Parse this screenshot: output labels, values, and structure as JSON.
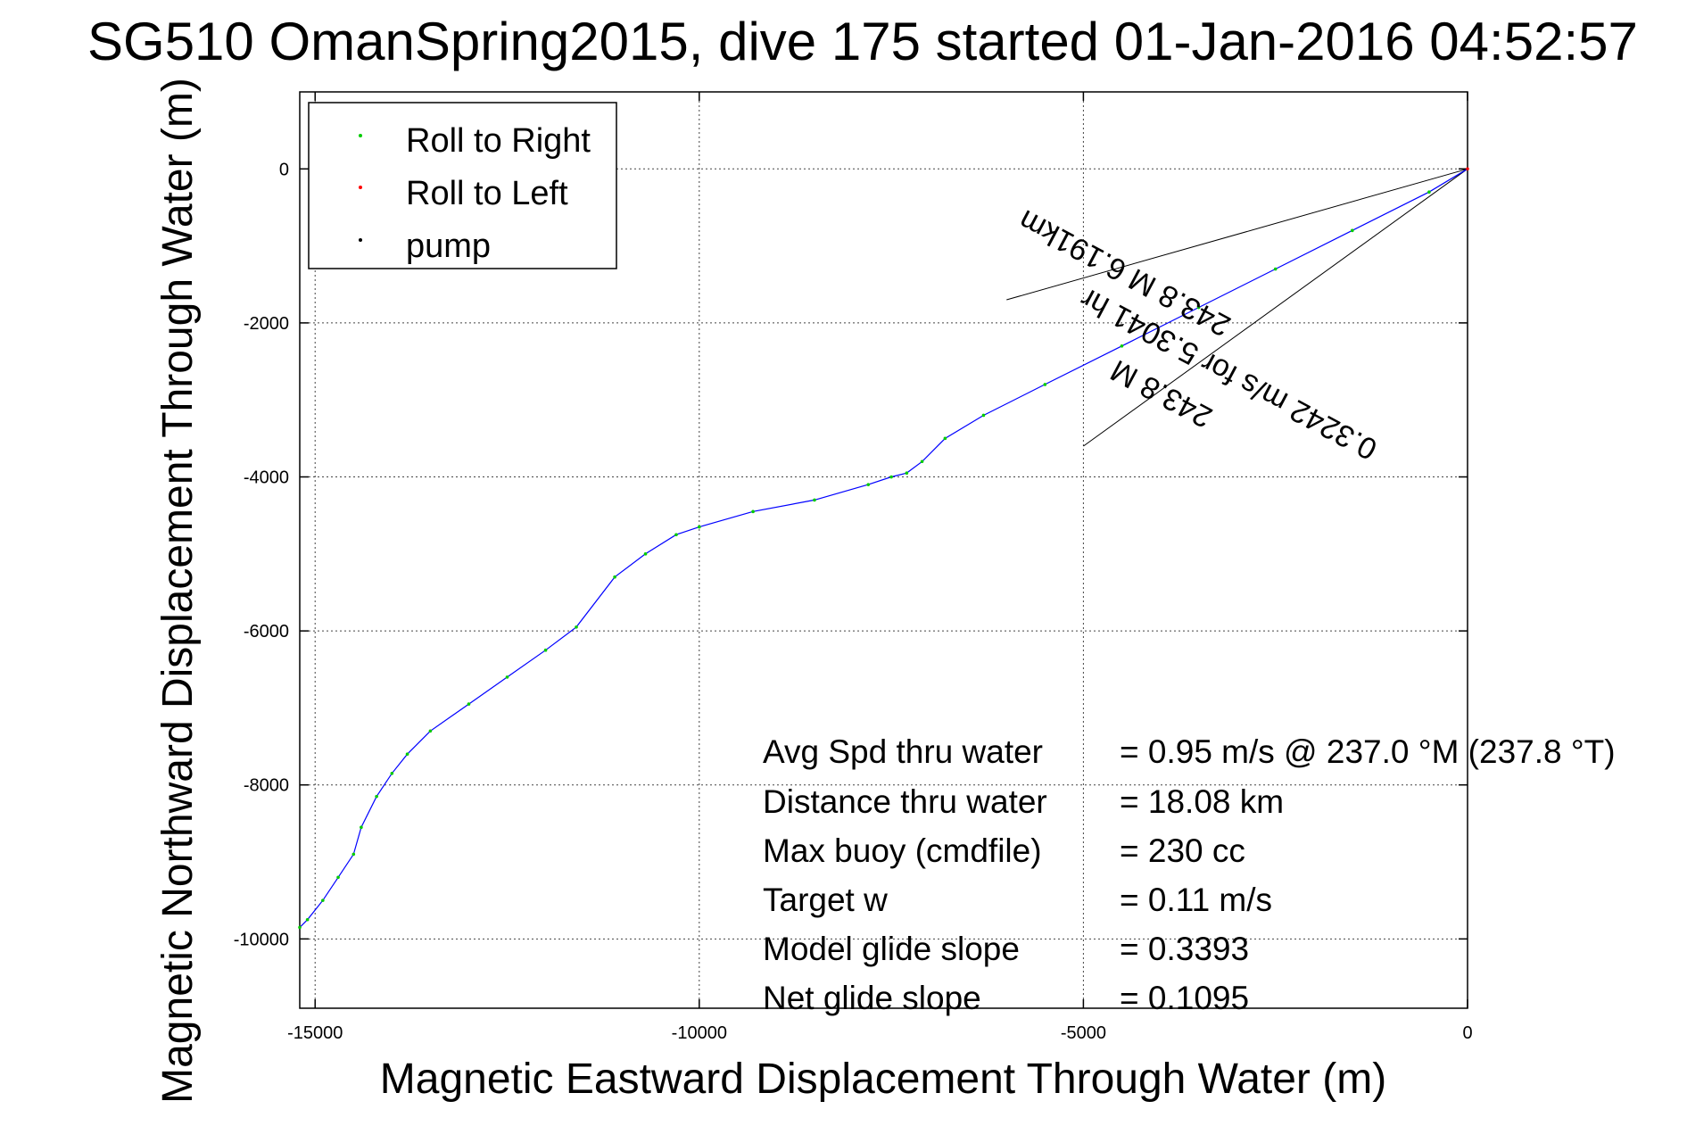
{
  "chart_data": {
    "type": "line",
    "title": "SG510 OmanSpring2015, dive 175 started 01-Jan-2016 04:52:57",
    "xlabel": "Magnetic Eastward Displacement Through Water (m)",
    "ylabel": "Magnetic Northward Displacement Through Water (m)",
    "xlim": [
      -15200,
      0
    ],
    "ylim": [
      -10900,
      1000
    ],
    "xticks": [
      -15000,
      -10000,
      -5000,
      0
    ],
    "xtick_labels": [
      "-15000",
      "-10000",
      "-5000",
      "0"
    ],
    "yticks": [
      0,
      -2000,
      -4000,
      -6000,
      -8000,
      -10000
    ],
    "ytick_labels": [
      "0",
      "-2000",
      "-4000",
      "-6000",
      "-8000",
      "-10000"
    ],
    "grid": true,
    "legend_position": "top-left",
    "legend": [
      {
        "label": "Roll to Right",
        "color": "#00cc00"
      },
      {
        "label": "Roll to Left",
        "color": "#ff0000"
      },
      {
        "label": "pump",
        "color": "#000000"
      }
    ],
    "track_color": "#0000ff",
    "series": [
      {
        "x": [
          0,
          -500,
          -1500,
          -2500,
          -3500,
          -4500,
          -5500,
          -6300,
          -6800,
          -7100,
          -7300,
          -7500,
          -7800,
          -8500,
          -9300,
          -10000,
          -10300,
          -10700,
          -11100,
          -11600,
          -12000,
          -12500,
          -13000,
          -13500,
          -13800,
          -14000,
          -14200,
          -14400,
          -14500,
          -14700,
          -14900,
          -15100,
          -15200
        ],
        "y": [
          0,
          -300,
          -800,
          -1300,
          -1800,
          -2300,
          -2800,
          -3200,
          -3500,
          -3800,
          -3950,
          -4000,
          -4100,
          -4300,
          -4450,
          -4650,
          -4750,
          -5000,
          -5300,
          -5950,
          -6250,
          -6600,
          -6950,
          -7300,
          -7600,
          -7850,
          -8150,
          -8550,
          -8900,
          -9200,
          -9500,
          -9750,
          -9850
        ]
      }
    ],
    "wedge": {
      "x": [
        -6000,
        0,
        -5000
      ],
      "y": [
        -1700,
        0,
        -3600
      ]
    },
    "wedge_labels": [
      "243.8 M",
      "0.3242 m/s for 5.3041 hr",
      "243.8 M 6.191km"
    ],
    "stats": [
      {
        "label": "Avg Spd thru water",
        "value": "=  0.95 m/s @ 237.0 °M (237.8 °T)"
      },
      {
        "label": "Distance thru water",
        "value": "= 18.08 km"
      },
      {
        "label": "Max buoy (cmdfile)",
        "value": "= 230 cc"
      },
      {
        "label": "Target w",
        "value": "= 0.11 m/s"
      },
      {
        "label": "Model glide slope",
        "value": "= 0.3393"
      },
      {
        "label": "Net glide slope",
        "value": "= 0.1095"
      }
    ]
  }
}
